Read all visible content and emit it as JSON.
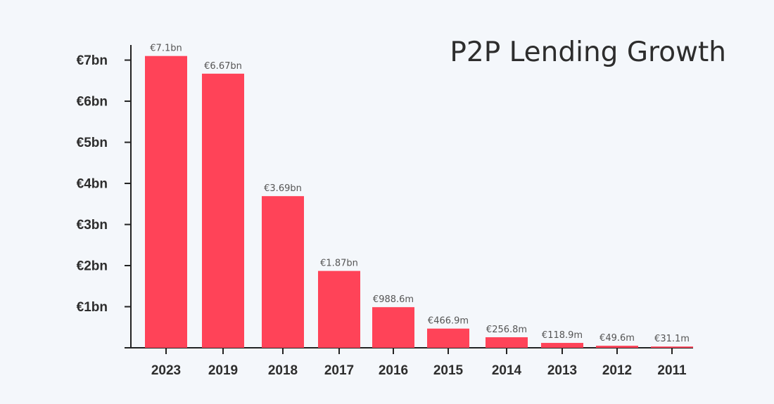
{
  "chart_data": {
    "type": "bar",
    "title": "P2P Lending Growth",
    "xlabel": "",
    "ylabel": "",
    "categories": [
      "2023",
      "2019",
      "2018",
      "2017",
      "2016",
      "2015",
      "2014",
      "2013",
      "2012",
      "2011"
    ],
    "values": [
      7.1,
      6.67,
      3.69,
      1.87,
      0.9886,
      0.4669,
      0.2568,
      0.1189,
      0.0496,
      0.0311
    ],
    "value_units": "billion EUR",
    "data_labels": [
      "€7.1bn",
      "€6.67bn",
      "€3.69bn",
      "€1.87bn",
      "€988.6m",
      "€466.9m",
      "€256.8m",
      "€118.9m",
      "€49.6m",
      "€31.1m"
    ],
    "y_ticks": [
      1,
      2,
      3,
      4,
      5,
      6,
      7
    ],
    "y_tick_labels": [
      "€1bn",
      "€2bn",
      "€3bn",
      "€4bn",
      "€5bn",
      "€6bn",
      "€7bn"
    ],
    "ylim": [
      0,
      7.3
    ],
    "grid": false,
    "legend": "none",
    "bar_color": "#ff4358",
    "axis_color": "#222222",
    "text_color": "#2d2d2d",
    "label_color": "#555555"
  }
}
